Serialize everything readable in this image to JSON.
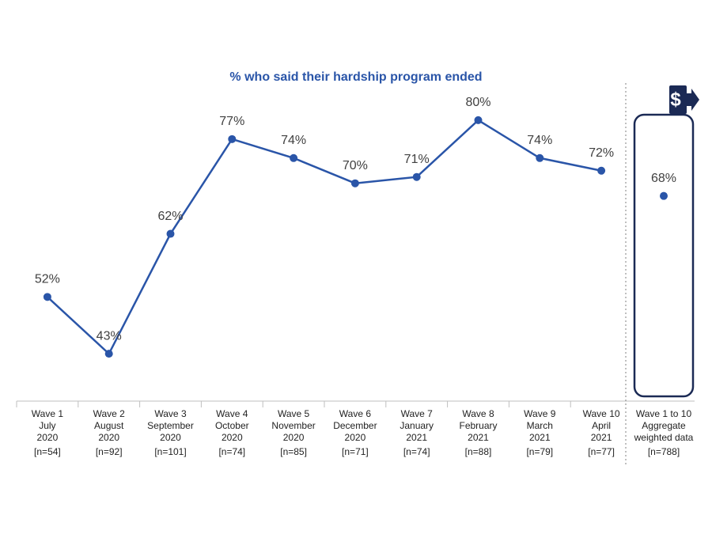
{
  "chart_data": {
    "type": "line",
    "title": "% who said their hardship program ended",
    "categories": [
      [
        "Wave 1",
        "July",
        "2020",
        "[n=54]"
      ],
      [
        "Wave 2",
        "August",
        "2020",
        "[n=92]"
      ],
      [
        "Wave 3",
        "September",
        "2020",
        "[n=101]"
      ],
      [
        "Wave 4",
        "October",
        "2020",
        "[n=74]"
      ],
      [
        "Wave 5",
        "November",
        "2020",
        "[n=85]"
      ],
      [
        "Wave 6",
        "December",
        "2020",
        "[n=71]"
      ],
      [
        "Wave 7",
        "January",
        "2021",
        "[n=74]"
      ],
      [
        "Wave 8",
        "February",
        "2021",
        "[n=88]"
      ],
      [
        "Wave 9",
        "March",
        "2021",
        "[n=79]"
      ],
      [
        "Wave 10",
        "April",
        "2021",
        "[n=77]"
      ],
      [
        "Wave 1 to 10",
        "Aggregate",
        "weighted data",
        "[n=788]"
      ]
    ],
    "series": [
      {
        "color": "#2a55a8",
        "values": [
          52,
          43,
          62,
          77,
          74,
          70,
          71,
          80,
          74,
          72,
          null
        ],
        "value_labels": [
          "52%",
          "43%",
          "62%",
          "77%",
          "74%",
          "70%",
          "71%",
          "80%",
          "74%",
          "72%",
          null
        ]
      },
      {
        "color": "#2a55a8",
        "values": [
          null,
          null,
          null,
          null,
          null,
          null,
          null,
          null,
          null,
          null,
          68
        ],
        "value_labels": [
          null,
          null,
          null,
          null,
          null,
          null,
          null,
          null,
          null,
          null,
          "68%"
        ]
      }
    ],
    "ylim": [
      35.5,
      85
    ]
  }
}
